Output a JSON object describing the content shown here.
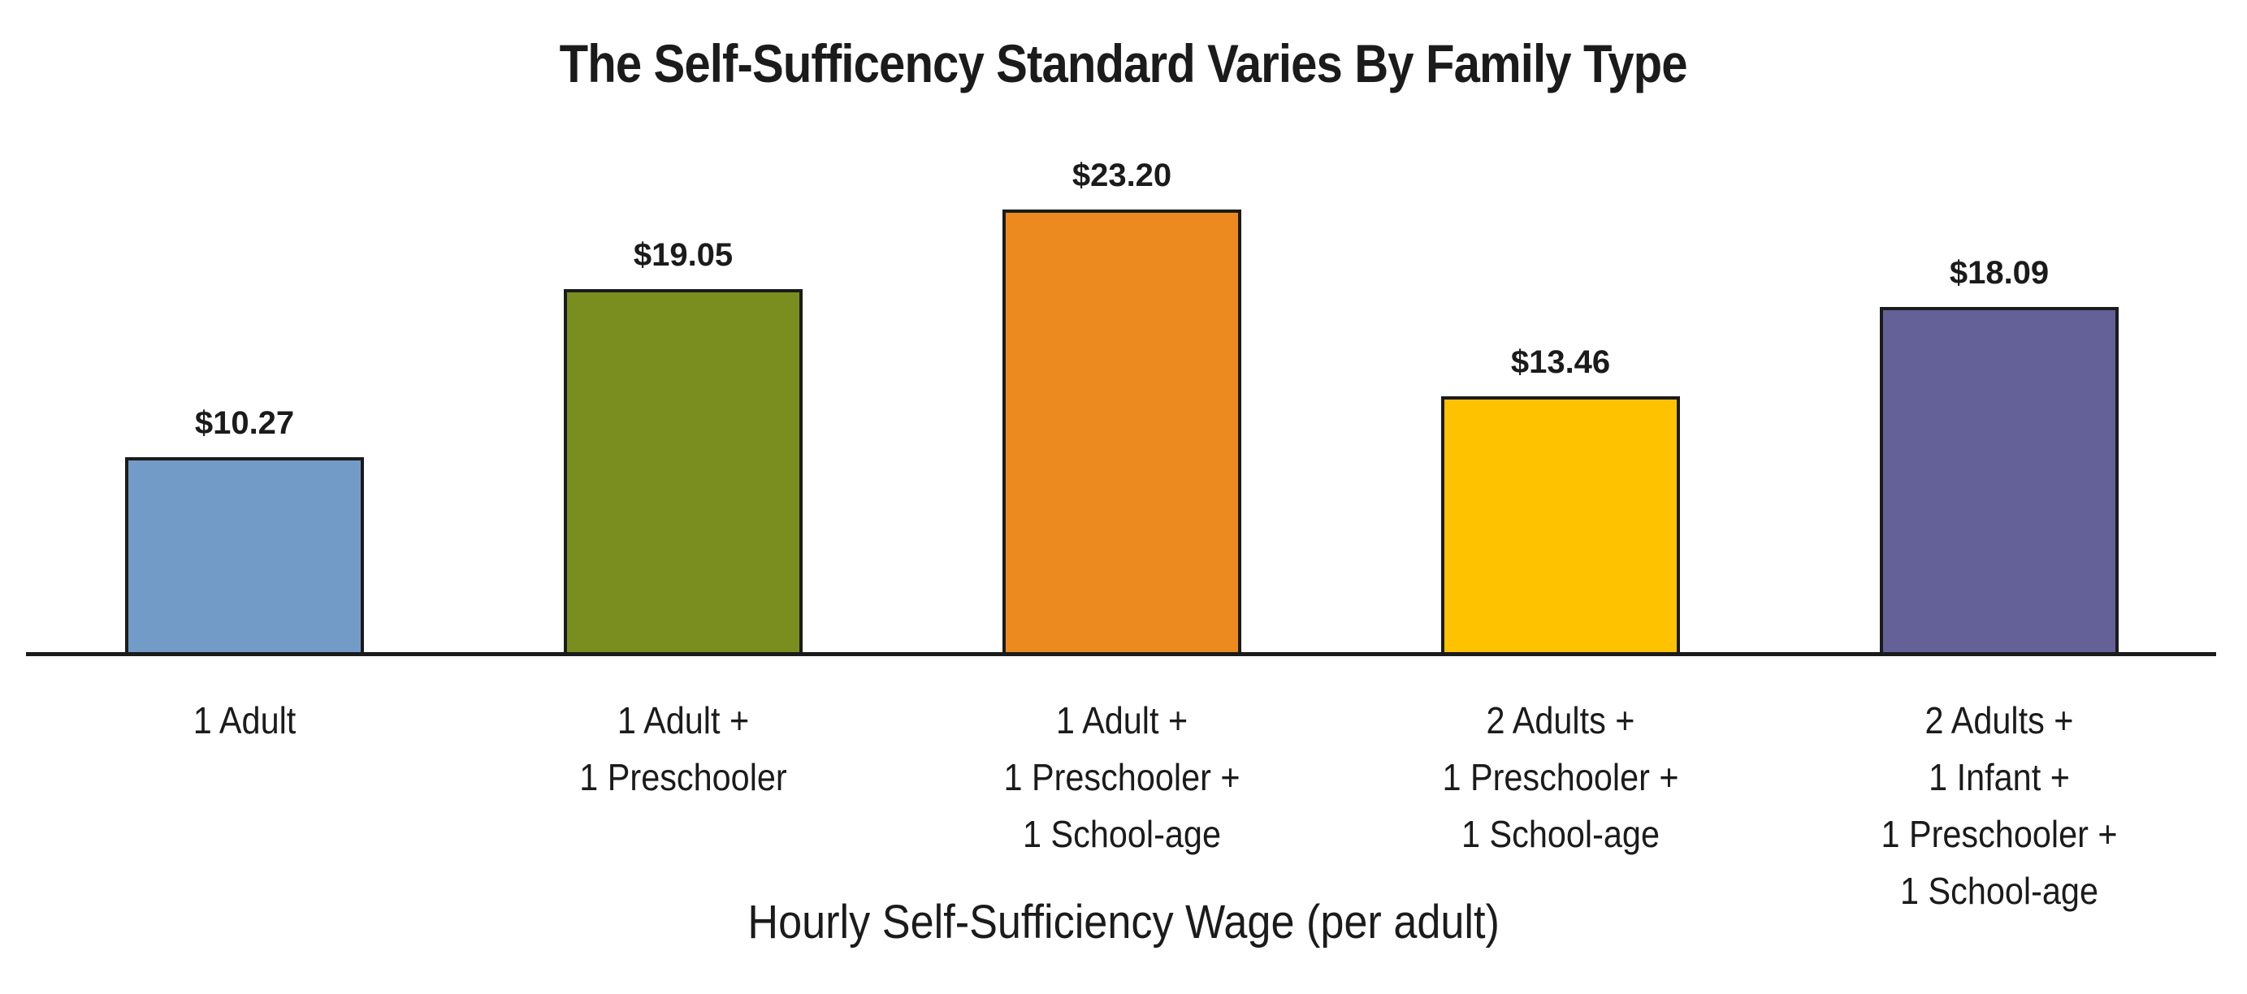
{
  "chart_data": {
    "type": "bar",
    "title": "The Self-Sufficency Standard Varies By Family Type",
    "xlabel": "Hourly Self-Sufficiency Wage (per adult)",
    "ylabel": "",
    "categories": [
      "1 Adult",
      "1 Adult + 1 Preschooler",
      "1 Adult + 1 Preschooler + 1 School-age",
      "2 Adults + 1 Preschooler + 1 School-age",
      "2 Adults + 1 Infant + 1 Preschooler + 1 School-age"
    ],
    "values": [
      10.27,
      19.05,
      23.2,
      13.46,
      18.09
    ],
    "data_labels": [
      "$10.27",
      "$19.05",
      "$23.20",
      "$13.46",
      "$18.09"
    ],
    "colors": [
      "#729bc7",
      "#7a8e20",
      "#ec8a1f",
      "#ffc200",
      "#646199"
    ],
    "ylim": [
      0,
      23.2
    ],
    "grid": false,
    "legend": null,
    "y_axis_visible": false
  },
  "title": "The Self-Sufficency Standard Varies By Family Type",
  "x_axis_title": "Hourly Self-Sufficiency Wage (per adult)",
  "bars": [
    {
      "value": 10.27,
      "label": "$10.27",
      "color": "#729bc7",
      "category_lines": [
        "1 Adult"
      ]
    },
    {
      "value": 19.05,
      "label": "$19.05",
      "color": "#7a8e20",
      "category_lines": [
        "1 Adult +",
        "1 Preschooler"
      ]
    },
    {
      "value": 23.2,
      "label": "$23.20",
      "color": "#ec8a1f",
      "category_lines": [
        "1 Adult +",
        "1 Preschooler +",
        "1 School-age"
      ]
    },
    {
      "value": 13.46,
      "label": "$13.46",
      "color": "#ffc200",
      "category_lines": [
        "2 Adults +",
        "1 Preschooler +",
        "1 School-age"
      ]
    },
    {
      "value": 18.09,
      "label": "$18.09",
      "color": "#646199",
      "category_lines": [
        "2 Adults +",
        "1 Infant +",
        "1 Preschooler +",
        "1 School-age"
      ]
    }
  ]
}
